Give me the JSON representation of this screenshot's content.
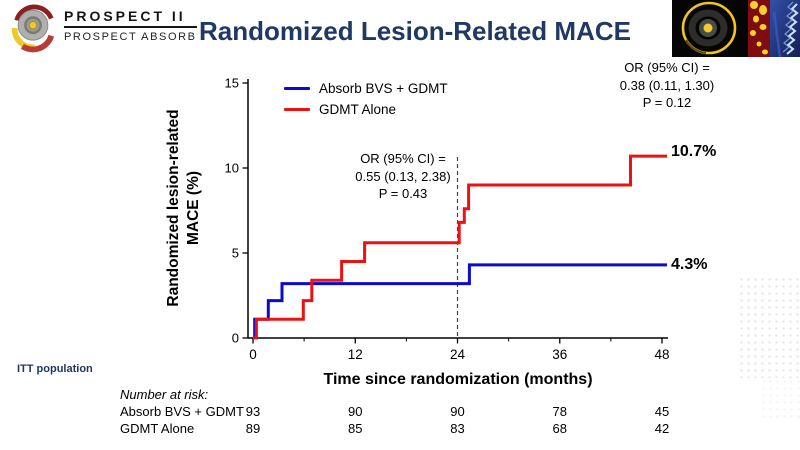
{
  "logo": {
    "line1": "PROSPECT II",
    "line2": "PROSPECT ABSORB"
  },
  "header": {
    "title": "Randomized Lesion-Related MACE",
    "title_color": "#1F3864"
  },
  "images": {
    "ivus_icon": "ivus-cross-section",
    "nirs_icon": "nirs-chemogram-strip",
    "scaffold_icon": "bvs-scaffold-render"
  },
  "chart_data": {
    "type": "line",
    "subtype": "kaplan-meier-step",
    "title": "Randomized Lesion-Related MACE",
    "xlabel": "Time since randomization (months)",
    "ylabel_line1": "Randomized lesion-related",
    "ylabel_line2": "MACE (%)",
    "xlim": [
      0,
      48
    ],
    "ylim": [
      0,
      15
    ],
    "xticks": [
      0,
      12,
      24,
      36,
      48
    ],
    "xticks_minor": [
      6,
      18,
      30,
      42
    ],
    "yticks": [
      0,
      5,
      10,
      15
    ],
    "grid": false,
    "legend_position": "top-left-inside",
    "dashed_vline_x": 24,
    "series": [
      {
        "name": "Absorb BVS + GDMT",
        "color": "#0A0AD0",
        "end_label": "4.3%",
        "points": [
          [
            0,
            0
          ],
          [
            0.2,
            1.1
          ],
          [
            1.8,
            2.2
          ],
          [
            3.4,
            3.2
          ],
          [
            25.4,
            4.3
          ],
          [
            48,
            4.3
          ]
        ]
      },
      {
        "name": "GDMT Alone",
        "color": "#EE1111",
        "end_label": "10.7%",
        "points": [
          [
            0,
            0
          ],
          [
            0.4,
            1.1
          ],
          [
            5.9,
            2.2
          ],
          [
            6.9,
            3.4
          ],
          [
            10.4,
            4.5
          ],
          [
            13.1,
            5.6
          ],
          [
            24.2,
            6.8
          ],
          [
            24.8,
            7.6
          ],
          [
            25.3,
            9.0
          ],
          [
            44.3,
            10.7
          ],
          [
            48,
            10.7
          ]
        ]
      }
    ],
    "annotations": [
      {
        "id": "or-24mo",
        "line1": "OR (95% CI) =",
        "line2": "0.55 (0.13, 2.38)",
        "line3": "P = 0.43"
      },
      {
        "id": "or-48mo",
        "line1": "OR (95% CI) =",
        "line2": "0.38 (0.11, 1.30)",
        "line3": "P = 0.12"
      }
    ]
  },
  "risk_table": {
    "caption": "Number at risk:",
    "rows": [
      {
        "label": "Absorb BVS + GDMT",
        "values": [
          93,
          90,
          90,
          78,
          45
        ]
      },
      {
        "label": "GDMT Alone",
        "values": [
          89,
          85,
          83,
          68,
          42
        ]
      }
    ]
  },
  "footer": {
    "population_label": "ITT population"
  }
}
